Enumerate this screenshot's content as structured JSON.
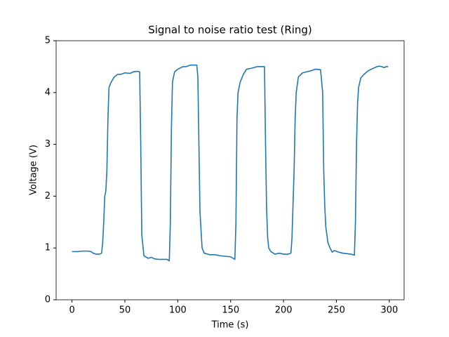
{
  "chart_data": {
    "type": "line",
    "title": "Signal to noise ratio test (Ring)",
    "xlabel": "Time (s)",
    "ylabel": "Voltage (V)",
    "x": [
      0,
      5,
      10,
      15,
      18,
      20,
      23,
      26,
      28,
      29,
      30,
      31,
      32,
      33,
      34,
      35,
      37,
      40,
      43,
      46,
      50,
      55,
      58,
      62,
      64,
      65,
      66,
      68,
      72,
      75,
      78,
      82,
      86,
      90,
      92,
      93,
      94,
      95,
      97,
      100,
      105,
      108,
      112,
      118,
      119,
      120,
      121,
      123,
      125,
      130,
      135,
      140,
      145,
      150,
      154,
      155,
      156,
      157,
      159,
      162,
      165,
      170,
      175,
      180,
      182,
      183,
      184,
      185,
      186,
      188,
      192,
      196,
      200,
      204,
      207,
      208,
      210,
      211,
      212,
      214,
      218,
      222,
      226,
      230,
      235,
      237,
      238,
      239,
      240,
      242,
      244,
      246,
      248,
      252,
      256,
      260,
      264,
      267,
      268,
      269,
      270,
      271,
      273,
      276,
      280,
      285,
      290,
      293,
      295,
      297,
      299
    ],
    "series": [
      {
        "name": "Voltage",
        "color": "#1f77b4",
        "values": [
          0.93,
          0.93,
          0.94,
          0.94,
          0.93,
          0.9,
          0.88,
          0.88,
          0.9,
          1.1,
          1.5,
          2.0,
          2.1,
          2.5,
          3.5,
          4.1,
          4.2,
          4.3,
          4.35,
          4.35,
          4.38,
          4.37,
          4.4,
          4.41,
          4.4,
          3.0,
          1.25,
          0.85,
          0.8,
          0.82,
          0.79,
          0.78,
          0.78,
          0.78,
          0.75,
          1.5,
          3.3,
          4.2,
          4.4,
          4.45,
          4.5,
          4.5,
          4.53,
          4.53,
          4.3,
          3.0,
          1.7,
          1.0,
          0.9,
          0.87,
          0.87,
          0.85,
          0.84,
          0.83,
          0.78,
          1.5,
          3.5,
          4.0,
          4.2,
          4.35,
          4.45,
          4.47,
          4.5,
          4.5,
          4.5,
          3.0,
          1.75,
          1.2,
          1.0,
          0.93,
          0.88,
          0.9,
          0.88,
          0.88,
          0.9,
          1.2,
          2.5,
          3.5,
          4.0,
          4.3,
          4.38,
          4.4,
          4.42,
          4.45,
          4.44,
          4.0,
          2.5,
          1.8,
          1.4,
          1.1,
          1.0,
          0.92,
          0.95,
          0.92,
          0.9,
          0.89,
          0.88,
          0.86,
          1.5,
          3.0,
          3.8,
          4.1,
          4.28,
          4.35,
          4.42,
          4.47,
          4.51,
          4.5,
          4.48,
          4.5,
          4.5
        ]
      }
    ],
    "xlim": [
      -15,
      314
    ],
    "ylim": [
      0,
      5
    ],
    "xticks": [
      0,
      50,
      100,
      150,
      200,
      250,
      300
    ],
    "yticks": [
      0,
      1,
      2,
      3,
      4,
      5
    ]
  }
}
